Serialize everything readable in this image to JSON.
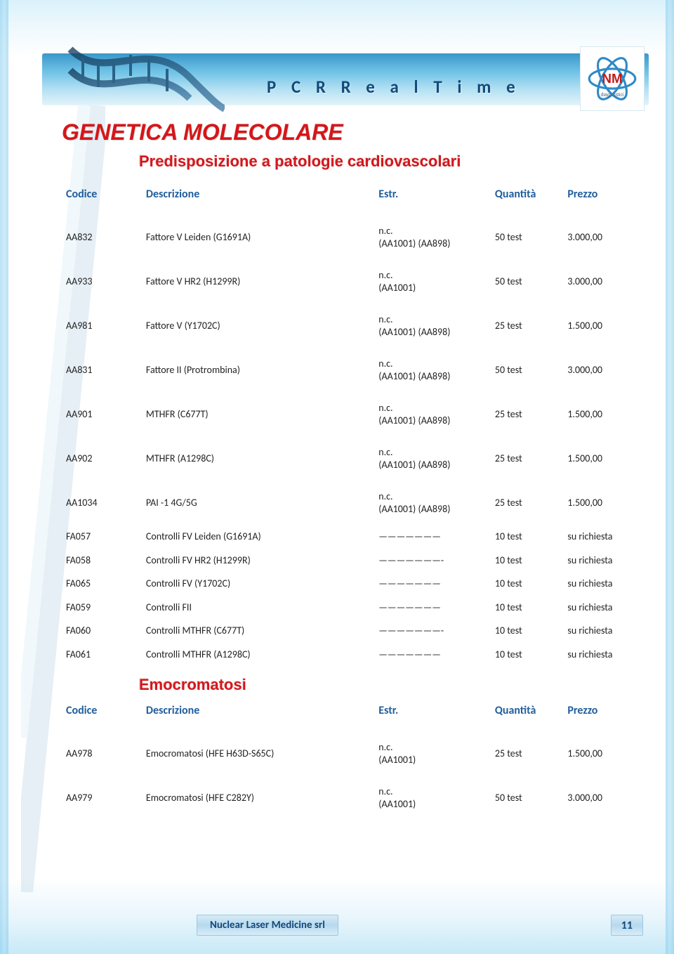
{
  "header": {
    "banner_title": "P C R   R e a l   T i m e",
    "logo_label": "NLM diagnostici"
  },
  "titles": {
    "main": "GENETICA MOLECOLARE",
    "section1": "Predisposizione a patologie cardiovascolari",
    "section2": "Emocromatosi"
  },
  "columns": {
    "code": "Codice",
    "desc": "Descrizione",
    "estr": "Estr.",
    "qty": "Quantità",
    "price": "Prezzo"
  },
  "rows1": [
    {
      "code": "AA832",
      "desc": "Fattore V Leiden (G1691A)",
      "estr": "n.c.\n(AA1001) (AA898)",
      "qty": "50 test",
      "price": "3.000,00"
    },
    {
      "code": "AA933",
      "desc": "Fattore V HR2 (H1299R)",
      "estr": "n.c.\n(AA1001)",
      "qty": "50 test",
      "price": "3.000,00"
    },
    {
      "code": "AA981",
      "desc": "Fattore V  (Y1702C)",
      "estr": "n.c.\n(AA1001) (AA898)",
      "qty": "25 test",
      "price": "1.500,00"
    },
    {
      "code": "AA831",
      "desc": "Fattore II (Protrombina)",
      "estr": "n.c.\n(AA1001) (AA898)",
      "qty": "50 test",
      "price": "3.000,00"
    },
    {
      "code": "AA901",
      "desc": "MTHFR (C677T)",
      "estr": "n.c.\n(AA1001) (AA898)",
      "qty": "25 test",
      "price": "1.500,00"
    },
    {
      "code": "AA902",
      "desc": "MTHFR (A1298C)",
      "estr": "n.c.\n(AA1001) (AA898)",
      "qty": "25 test",
      "price": "1.500,00"
    },
    {
      "code": "AA1034",
      "desc": "PAI -1   4G/5G",
      "estr": "n.c.\n(AA1001) (AA898)",
      "qty": "25 test",
      "price": "1.500,00"
    },
    {
      "code": "FA057",
      "desc": "Controlli FV Leiden (G1691A)",
      "estr": "———————",
      "qty": "10 test",
      "price": "su richiesta"
    },
    {
      "code": "FA058",
      "desc": "Controlli FV HR2 (H1299R)",
      "estr": "———————-",
      "qty": "10 test",
      "price": "su richiesta"
    },
    {
      "code": "FA065",
      "desc": "Controlli FV (Y1702C)",
      "estr": "———————",
      "qty": "10 test",
      "price": "su richiesta"
    },
    {
      "code": "FA059",
      "desc": "Controlli FII",
      "estr": "———————",
      "qty": "10 test",
      "price": "su richiesta"
    },
    {
      "code": "FA060",
      "desc": "Controlli MTHFR (C677T)",
      "estr": "———————-",
      "qty": "10 test",
      "price": "su richiesta"
    },
    {
      "code": "FA061",
      "desc": "Controlli MTHFR (A1298C)",
      "estr": "———————",
      "qty": "10 test",
      "price": "su richiesta"
    }
  ],
  "rows2": [
    {
      "code": "AA978",
      "desc": "Emocromatosi (HFE  H63D-S65C)",
      "estr": "n.c.\n(AA1001)",
      "qty": "25 test",
      "price": "1.500,00"
    },
    {
      "code": "AA979",
      "desc": "Emocromatosi (HFE  C282Y)",
      "estr": "n.c.\n(AA1001)",
      "qty": "50 test",
      "price": "3.000,00"
    }
  ],
  "footer": {
    "company": "Nuclear Laser Medicine srl",
    "page": "11"
  },
  "style": {
    "header_text_color": "#134a78",
    "title_color": "#d5161a",
    "column_header_color": "#1f5d9c",
    "body_text_color": "#222222",
    "band_gradient_top": "#3a97c8",
    "band_gradient_bottom": "#e4f3fa",
    "page_bg_top": "#d9f1fb",
    "page_bg_bottom": "#c8e9f7",
    "font_family": "Calibri, Arial, sans-serif"
  }
}
